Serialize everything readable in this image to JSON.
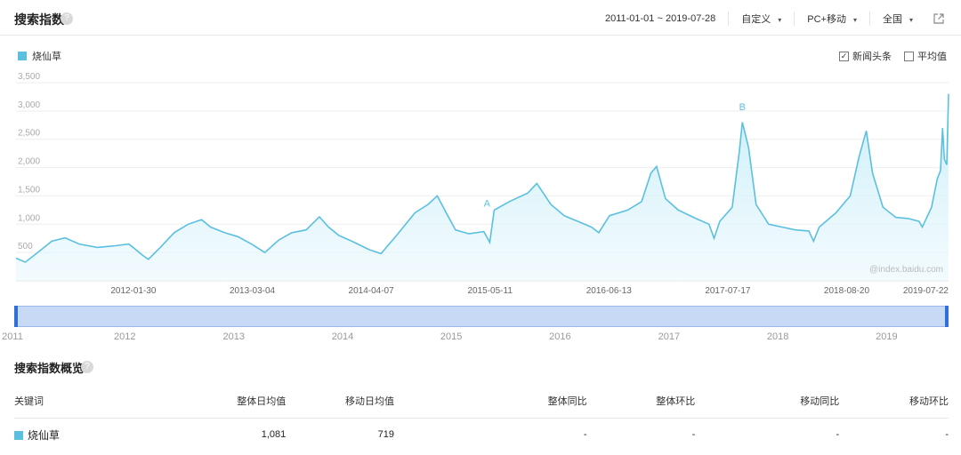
{
  "header": {
    "title": "搜索指数",
    "help_icon": "?",
    "date_range": "2011-01-01 ~ 2019-07-28",
    "custom_label": "自定义",
    "device_label": "PC+移动",
    "region_label": "全国",
    "caret": "▾"
  },
  "legend": {
    "keyword": "烧仙草",
    "color": "#5bc0e0"
  },
  "options": {
    "news_label": "新闻头条",
    "news_checked": "✓",
    "avg_label": "平均值"
  },
  "chart_data": {
    "type": "area",
    "ylim": [
      0,
      3500
    ],
    "yticks": [
      "3,500",
      "3,000",
      "2,500",
      "2,000",
      "1,500",
      "1,000",
      "500"
    ],
    "ytick_values": [
      3500,
      3000,
      2500,
      2000,
      1500,
      1000,
      500
    ],
    "xticks": [
      "2012-01-30",
      "2013-03-04",
      "2014-04-07",
      "2015-05-11",
      "2016-06-13",
      "2017-07-17",
      "2018-08-20",
      "2019-07-22"
    ],
    "xtick_dates": [
      "2012-01-30",
      "2013-03-04",
      "2014-04-07",
      "2015-05-11",
      "2016-06-13",
      "2017-07-17",
      "2018-08-20",
      "2019-07-22"
    ],
    "watermark": "@index.baidu.com",
    "annotations": [
      {
        "label": "A",
        "x": "2015-05-01",
        "y": 1250
      },
      {
        "label": "B",
        "x": "2017-09-04",
        "y": 2950
      }
    ],
    "series": [
      {
        "name": "烧仙草",
        "points": [
          [
            "2011-01-01",
            400
          ],
          [
            "2011-02-01",
            330
          ],
          [
            "2011-03-15",
            500
          ],
          [
            "2011-05-01",
            700
          ],
          [
            "2011-06-15",
            760
          ],
          [
            "2011-08-01",
            650
          ],
          [
            "2011-10-01",
            590
          ],
          [
            "2011-12-01",
            620
          ],
          [
            "2012-01-15",
            650
          ],
          [
            "2012-03-01",
            450
          ],
          [
            "2012-03-20",
            380
          ],
          [
            "2012-05-01",
            600
          ],
          [
            "2012-06-15",
            850
          ],
          [
            "2012-08-01",
            1000
          ],
          [
            "2012-09-15",
            1080
          ],
          [
            "2012-10-15",
            950
          ],
          [
            "2012-12-01",
            850
          ],
          [
            "2013-01-15",
            780
          ],
          [
            "2013-03-01",
            650
          ],
          [
            "2013-04-15",
            500
          ],
          [
            "2013-06-01",
            720
          ],
          [
            "2013-07-15",
            850
          ],
          [
            "2013-09-01",
            900
          ],
          [
            "2013-10-15",
            1130
          ],
          [
            "2013-11-15",
            950
          ],
          [
            "2013-12-20",
            800
          ],
          [
            "2014-02-01",
            700
          ],
          [
            "2014-04-01",
            550
          ],
          [
            "2014-05-10",
            480
          ],
          [
            "2014-07-01",
            800
          ],
          [
            "2014-09-01",
            1200
          ],
          [
            "2014-10-15",
            1350
          ],
          [
            "2014-11-15",
            1500
          ],
          [
            "2014-12-15",
            1200
          ],
          [
            "2015-01-15",
            900
          ],
          [
            "2015-03-01",
            830
          ],
          [
            "2015-04-20",
            870
          ],
          [
            "2015-05-10",
            680
          ],
          [
            "2015-05-25",
            1250
          ],
          [
            "2015-07-15",
            1400
          ],
          [
            "2015-09-15",
            1550
          ],
          [
            "2015-10-15",
            1720
          ],
          [
            "2015-12-01",
            1350
          ],
          [
            "2016-01-15",
            1150
          ],
          [
            "2016-03-01",
            1050
          ],
          [
            "2016-04-15",
            950
          ],
          [
            "2016-05-10",
            850
          ],
          [
            "2016-06-15",
            1150
          ],
          [
            "2016-08-15",
            1250
          ],
          [
            "2016-10-01",
            1400
          ],
          [
            "2016-11-01",
            1900
          ],
          [
            "2016-11-20",
            2020
          ],
          [
            "2016-12-20",
            1450
          ],
          [
            "2017-02-01",
            1250
          ],
          [
            "2017-04-01",
            1100
          ],
          [
            "2017-05-15",
            1000
          ],
          [
            "2017-06-01",
            750
          ],
          [
            "2017-06-20",
            1050
          ],
          [
            "2017-08-01",
            1300
          ],
          [
            "2017-08-25",
            2300
          ],
          [
            "2017-09-04",
            2800
          ],
          [
            "2017-09-25",
            2350
          ],
          [
            "2017-10-20",
            1350
          ],
          [
            "2017-12-01",
            1000
          ],
          [
            "2018-01-15",
            950
          ],
          [
            "2018-03-01",
            900
          ],
          [
            "2018-04-15",
            880
          ],
          [
            "2018-05-01",
            700
          ],
          [
            "2018-05-20",
            950
          ],
          [
            "2018-07-15",
            1200
          ],
          [
            "2018-09-01",
            1500
          ],
          [
            "2018-10-01",
            2200
          ],
          [
            "2018-10-25",
            2650
          ],
          [
            "2018-11-15",
            1900
          ],
          [
            "2018-12-20",
            1300
          ],
          [
            "2019-02-01",
            1120
          ],
          [
            "2019-03-15",
            1100
          ],
          [
            "2019-04-20",
            1050
          ],
          [
            "2019-05-01",
            950
          ],
          [
            "2019-06-01",
            1300
          ],
          [
            "2019-06-20",
            1800
          ],
          [
            "2019-07-01",
            1950
          ],
          [
            "2019-07-08",
            2700
          ],
          [
            "2019-07-14",
            2150
          ],
          [
            "2019-07-22",
            2050
          ],
          [
            "2019-07-28",
            3300
          ]
        ]
      }
    ]
  },
  "slider": {
    "years": [
      "2011",
      "2012",
      "2013",
      "2014",
      "2015",
      "2016",
      "2017",
      "2018",
      "2019"
    ],
    "year_dates": [
      "2011-01-01",
      "2012-01-01",
      "2013-01-01",
      "2014-01-01",
      "2015-01-01",
      "2016-01-01",
      "2017-01-01",
      "2018-01-01",
      "2019-01-01"
    ]
  },
  "overview": {
    "title": "搜索指数概览",
    "help_icon": "?",
    "headers": [
      "关键词",
      "整体日均值",
      "移动日均值",
      "整体同比",
      "整体环比",
      "移动同比",
      "移动环比"
    ],
    "row": {
      "keyword": "烧仙草",
      "overall_avg": "1,081",
      "mobile_avg": "719",
      "overall_yoy": "-",
      "overall_mom": "-",
      "mobile_yoy": "-",
      "mobile_mom": "-"
    }
  }
}
